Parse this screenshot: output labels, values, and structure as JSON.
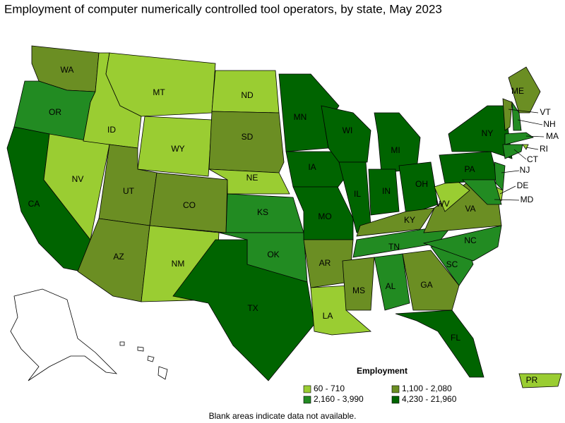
{
  "title": "Employment of computer numerically controlled tool operators, by state, May 2023",
  "legend": {
    "title": "Employment",
    "items": [
      {
        "label": "60 - 710",
        "color": "#9acd32"
      },
      {
        "label": "1,100 - 2,080",
        "color": "#6b8e23"
      },
      {
        "label": "2,160 - 3,990",
        "color": "#228b22"
      },
      {
        "label": "4,230 - 21,960",
        "color": "#006400"
      }
    ]
  },
  "states": [
    {
      "abbr": "WA",
      "class": 1
    },
    {
      "abbr": "OR",
      "class": 2
    },
    {
      "abbr": "CA",
      "class": 3
    },
    {
      "abbr": "NV",
      "class": 0
    },
    {
      "abbr": "ID",
      "class": 0
    },
    {
      "abbr": "MT",
      "class": 0
    },
    {
      "abbr": "WY",
      "class": 0
    },
    {
      "abbr": "UT",
      "class": 1
    },
    {
      "abbr": "CO",
      "class": 1
    },
    {
      "abbr": "AZ",
      "class": 1
    },
    {
      "abbr": "NM",
      "class": 0
    },
    {
      "abbr": "ND",
      "class": 0
    },
    {
      "abbr": "SD",
      "class": 1
    },
    {
      "abbr": "NE",
      "class": 0
    },
    {
      "abbr": "KS",
      "class": 2
    },
    {
      "abbr": "OK",
      "class": 2
    },
    {
      "abbr": "TX",
      "class": 3
    },
    {
      "abbr": "MN",
      "class": 3
    },
    {
      "abbr": "IA",
      "class": 3
    },
    {
      "abbr": "MO",
      "class": 3
    },
    {
      "abbr": "AR",
      "class": 1
    },
    {
      "abbr": "LA",
      "class": 0
    },
    {
      "abbr": "WI",
      "class": 3
    },
    {
      "abbr": "IL",
      "class": 3
    },
    {
      "abbr": "MI",
      "class": 3
    },
    {
      "abbr": "IN",
      "class": 3
    },
    {
      "abbr": "OH",
      "class": 3
    },
    {
      "abbr": "KY",
      "class": 1
    },
    {
      "abbr": "TN",
      "class": 2
    },
    {
      "abbr": "MS",
      "class": 1
    },
    {
      "abbr": "AL",
      "class": 2
    },
    {
      "abbr": "GA",
      "class": 1
    },
    {
      "abbr": "FL",
      "class": 3
    },
    {
      "abbr": "SC",
      "class": 2
    },
    {
      "abbr": "NC",
      "class": 2
    },
    {
      "abbr": "VA",
      "class": 1
    },
    {
      "abbr": "WV",
      "class": 0
    },
    {
      "abbr": "PA",
      "class": 3
    },
    {
      "abbr": "NY",
      "class": 3
    },
    {
      "abbr": "ME",
      "class": 1
    },
    {
      "abbr": "VT",
      "class": 1
    },
    {
      "abbr": "NH",
      "class": 2
    },
    {
      "abbr": "MA",
      "class": 2
    },
    {
      "abbr": "RI",
      "class": 0
    },
    {
      "abbr": "CT",
      "class": 2
    },
    {
      "abbr": "NJ",
      "class": 2
    },
    {
      "abbr": "DE",
      "class": 0
    },
    {
      "abbr": "MD",
      "class": 2
    },
    {
      "abbr": "PR",
      "class": 0
    }
  ],
  "note": "Blank areas indicate data not available."
}
